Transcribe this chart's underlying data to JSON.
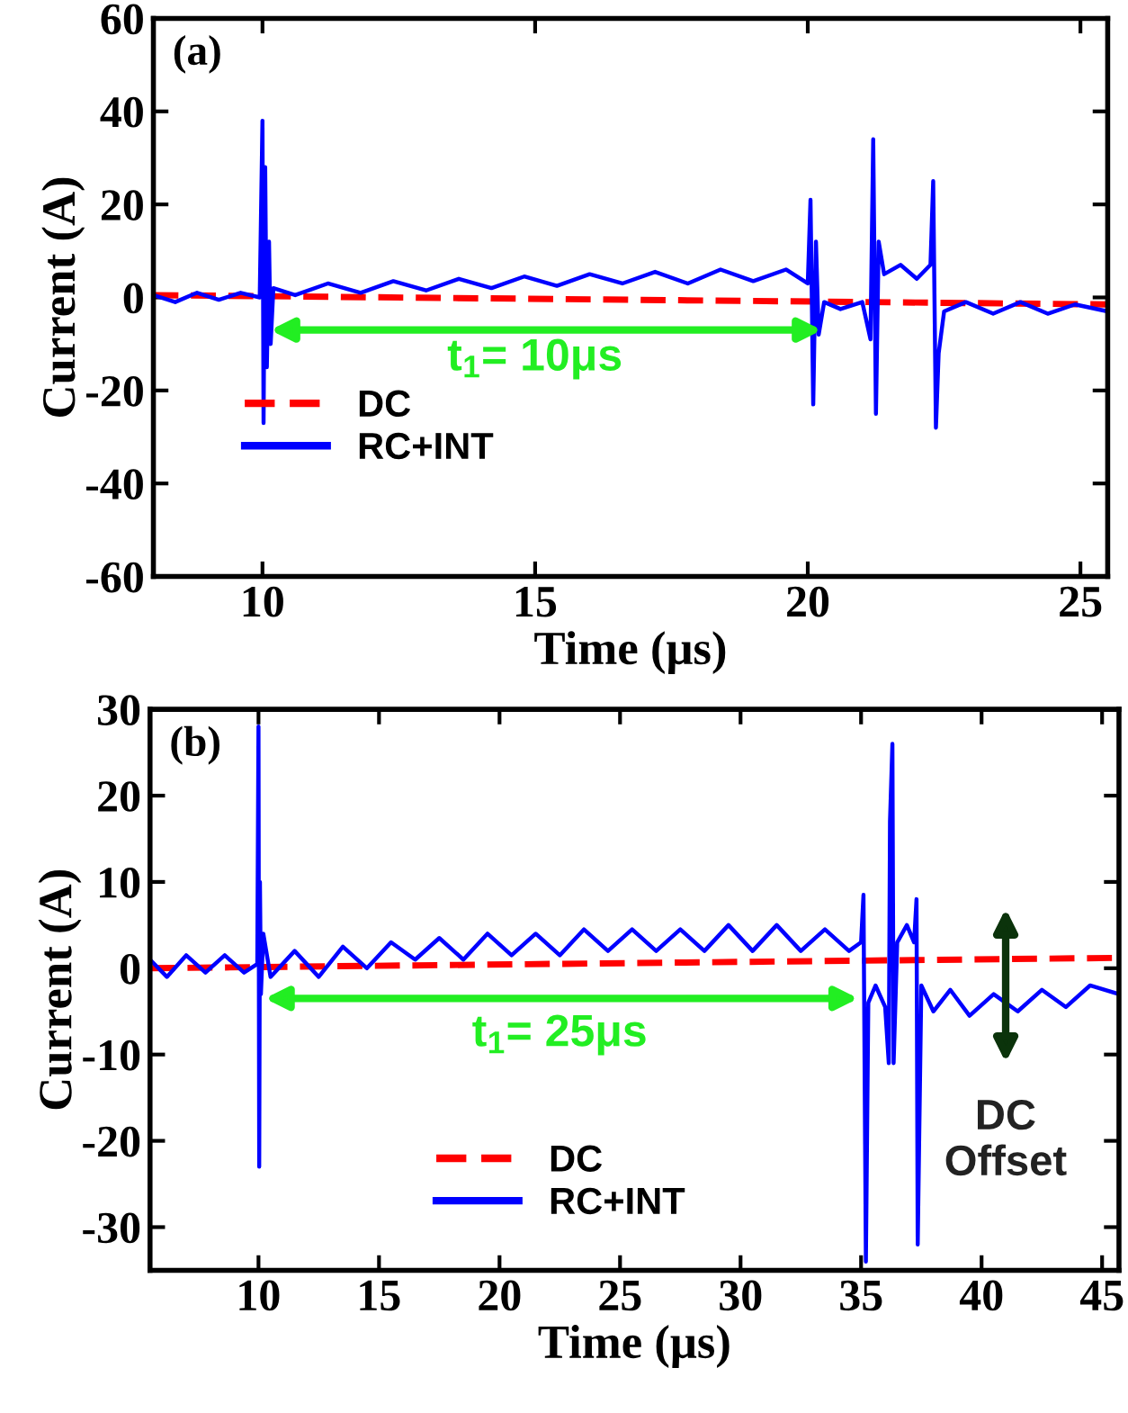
{
  "chart_data": [
    {
      "type": "line",
      "xlabel": "Time (μs)",
      "ylabel": "Current (A)",
      "xlim": [
        8,
        25.5
      ],
      "ylim": [
        -60,
        60
      ],
      "xticks": [
        10,
        15,
        20,
        25
      ],
      "yticks": [
        -60,
        -40,
        -20,
        0,
        20,
        40,
        60
      ],
      "grid": false,
      "legend": "bottom left",
      "annotations": [
        "(a)",
        "t$_{1}$= 10μs"
      ],
      "series": [
        {
          "name": "DC",
          "color": "#ff0000",
          "line_style": "dashed",
          "x": [
            8,
            25.5
          ],
          "values": [
            0.5,
            -1.5
          ]
        },
        {
          "name": "RC+INT",
          "color": "#0000ff",
          "line_style": "solid",
          "x": [
            8,
            8.4,
            8.8,
            9.2,
            9.6,
            9.95,
            10.0,
            10.02,
            10.05,
            10.08,
            10.12,
            10.15,
            10.2,
            10.6,
            11.2,
            11.8,
            12.4,
            13,
            13.6,
            14.2,
            14.8,
            15.4,
            16,
            16.6,
            17.2,
            17.8,
            18.4,
            19,
            19.6,
            20.0,
            20.05,
            20.1,
            20.15,
            20.2,
            20.3,
            20.6,
            21.0,
            21.15,
            21.2,
            21.25,
            21.3,
            21.4,
            21.7,
            22.0,
            22.25,
            22.3,
            22.35,
            22.4,
            22.5,
            22.9,
            23.4,
            23.9,
            24.4,
            24.9,
            25.5
          ],
          "values": [
            0.5,
            -1,
            1,
            -0.5,
            1,
            0,
            38,
            -27,
            28,
            -15,
            12,
            -10,
            2,
            0.5,
            3,
            1,
            3.5,
            1.5,
            4,
            2,
            4.5,
            2.5,
            5,
            3,
            5.5,
            3,
            6,
            3.5,
            6,
            3,
            21,
            -23,
            12,
            -8,
            -1,
            -2.5,
            -1,
            -9,
            34,
            -25,
            12,
            5,
            7,
            4,
            7,
            25,
            -28,
            -12,
            -3,
            -1,
            -3.5,
            -1,
            -3.5,
            -1.5,
            -3
          ]
        }
      ]
    },
    {
      "type": "line",
      "xlabel": "Time (μs)",
      "ylabel": "Current (A)",
      "xlim": [
        5.5,
        45.7
      ],
      "ylim": [
        -35,
        30
      ],
      "xticks": [
        10,
        15,
        20,
        25,
        30,
        35,
        40,
        45
      ],
      "yticks": [
        -30,
        -20,
        -10,
        0,
        10,
        20,
        30
      ],
      "grid": false,
      "legend": "bottom",
      "annotations": [
        "(b)",
        "t$_{1}$= 25μs",
        "DC\nOffset"
      ],
      "series": [
        {
          "name": "DC",
          "color": "#ff0000",
          "line_style": "dashed",
          "x": [
            5.5,
            45.7
          ],
          "values": [
            0,
            1.2
          ]
        },
        {
          "name": "RC+INT",
          "color": "#0000ff",
          "line_style": "solid",
          "x": [
            5.5,
            6.2,
            7,
            7.8,
            8.6,
            9.4,
            9.95,
            10.0,
            10.03,
            10.06,
            10.1,
            10.2,
            10.5,
            11.5,
            12.5,
            13.5,
            14.5,
            15.5,
            16.5,
            17.5,
            18.5,
            19.5,
            20.5,
            21.5,
            22.5,
            23.5,
            24.5,
            25.5,
            26.5,
            27.5,
            28.5,
            29.5,
            30.5,
            31.5,
            32.5,
            33.5,
            34.5,
            35.0,
            35.1,
            35.2,
            35.3,
            35.6,
            36.0,
            36.15,
            36.2,
            36.3,
            36.35,
            36.5,
            36.9,
            37.2,
            37.3,
            37.35,
            37.5,
            38,
            38.7,
            39.5,
            40.5,
            41.5,
            42.5,
            43.5,
            44.5,
            45.7
          ],
          "values": [
            1,
            -1,
            1.5,
            -0.5,
            1.5,
            -0.5,
            0.5,
            28,
            -23,
            10,
            -3,
            4,
            -1,
            2,
            -1,
            2.5,
            0,
            3,
            1,
            3.5,
            1,
            4,
            1.5,
            4,
            1.5,
            4.5,
            2,
            4.5,
            2,
            4.5,
            2,
            5,
            2,
            5,
            2,
            4.5,
            2,
            3,
            8.5,
            -34,
            -4,
            -2,
            -4.5,
            -11,
            17,
            26,
            -11,
            3,
            5,
            3,
            8,
            -32,
            -2,
            -5,
            -2.5,
            -5.5,
            -3,
            -5,
            -2.5,
            -4.5,
            -2,
            -3
          ]
        }
      ]
    }
  ]
}
